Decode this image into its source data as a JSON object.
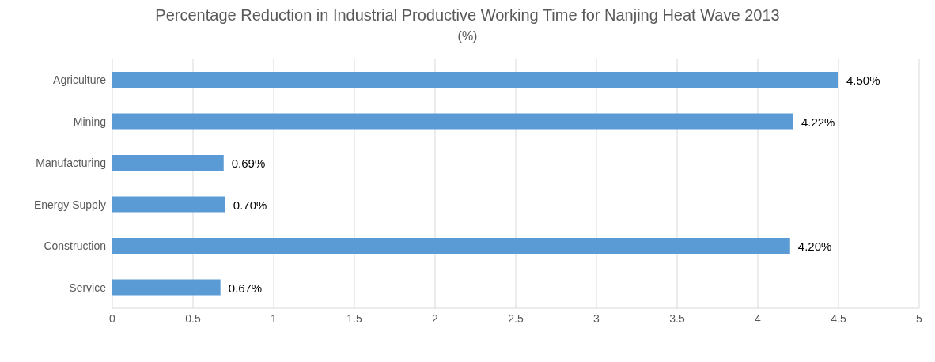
{
  "chart_data": {
    "type": "bar",
    "orientation": "horizontal",
    "title": "Percentage Reduction in Industrial Productive Working Time for Nanjing Heat Wave 2013",
    "subtitle": "(%)",
    "categories": [
      "Agriculture",
      "Mining",
      "Manufacturing",
      "Energy Supply",
      "Construction",
      "Service"
    ],
    "values": [
      4.5,
      4.22,
      0.69,
      0.7,
      4.2,
      0.67
    ],
    "value_labels": [
      "4.50%",
      "4.22%",
      "0.69%",
      "0.70%",
      "4.20%",
      "0.67%"
    ],
    "color": "#5b9bd5",
    "xlim": [
      0,
      5
    ],
    "xticks": [
      0,
      0.5,
      1,
      1.5,
      2,
      2.5,
      3,
      3.5,
      4,
      4.5,
      5
    ],
    "grid": "x"
  }
}
